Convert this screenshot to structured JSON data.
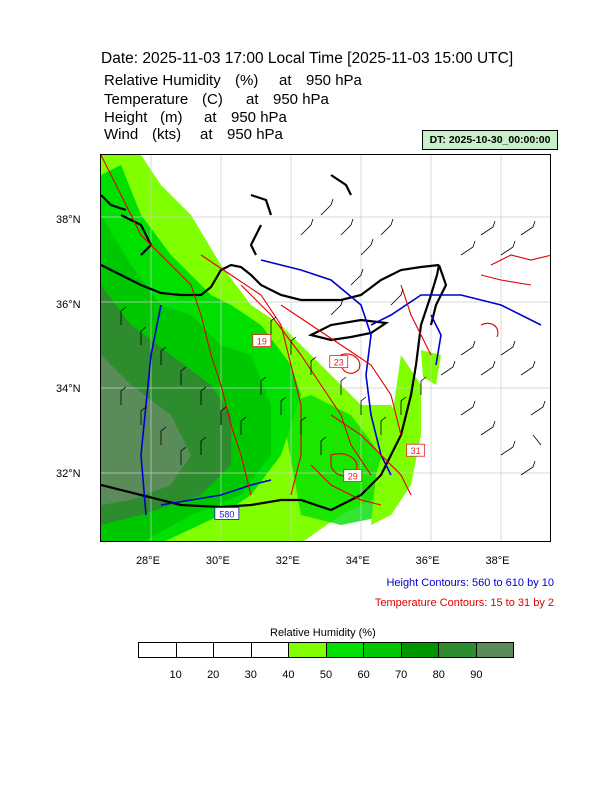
{
  "header": {
    "date_line": "Date: 2025-11-03  17:00 Local Time [2025-11-03  15:00 UTC]",
    "variables": [
      {
        "name": "Relative Humidity",
        "unit": "(%)",
        "at": "at",
        "level": "950 hPa"
      },
      {
        "name": "Temperature",
        "unit": "(C)",
        "at": "at",
        "level": "950 hPa"
      },
      {
        "name": "Height",
        "unit": "(m)",
        "at": "at",
        "level": "950 hPa"
      },
      {
        "name": "Wind",
        "unit": "(kts)",
        "at": "at",
        "level": "950 hPa"
      }
    ],
    "dt_label": "DT: 2025-10-30_00:00:00",
    "dt_box_color": "#c8f0c8"
  },
  "map": {
    "lon_range": [
      26.6,
      39.5
    ],
    "lat_range": [
      30.4,
      39.6
    ],
    "lon_ticks": [
      {
        "value": 28,
        "label": "28°E"
      },
      {
        "value": 30,
        "label": "30°E"
      },
      {
        "value": 32,
        "label": "32°E"
      },
      {
        "value": 34,
        "label": "34°E"
      },
      {
        "value": 36,
        "label": "36°E"
      },
      {
        "value": 38,
        "label": "38°E"
      }
    ],
    "lat_ticks": [
      {
        "value": 38,
        "label": "38°N"
      },
      {
        "value": 36,
        "label": "36°N"
      },
      {
        "value": 34,
        "label": "34°N"
      },
      {
        "value": 32,
        "label": "32°N"
      }
    ],
    "contour_labels": [
      {
        "text": "19",
        "lon": 31.2,
        "lat": 35.2,
        "color": "#e02020"
      },
      {
        "text": "23",
        "lon": 33.4,
        "lat": 34.7,
        "color": "#e02020"
      },
      {
        "text": "29",
        "lon": 33.8,
        "lat": 32.0,
        "color": "#e02020"
      },
      {
        "text": "31",
        "lon": 35.6,
        "lat": 32.6,
        "color": "#e02020"
      },
      {
        "text": "580",
        "lon": 30.2,
        "lat": 31.1,
        "color": "#1a1acc"
      }
    ]
  },
  "legend": {
    "height_contours": "Height Contours: 560 to 610 by 10",
    "height_color": "#0000cc",
    "temperature_contours": "Temperature Contours: 15 to 31 by 2",
    "temperature_color": "#e00000"
  },
  "colorbar": {
    "title": "Relative Humidity  (%)",
    "labels": [
      "10",
      "20",
      "30",
      "40",
      "50",
      "60",
      "70",
      "80",
      "90"
    ],
    "colors": [
      "#ffffff",
      "#ffffff",
      "#ffffff",
      "#ffffff",
      "#80ff00",
      "#00e000",
      "#00c800",
      "#009600",
      "#2d8c2d",
      "#5a8c5a"
    ]
  }
}
